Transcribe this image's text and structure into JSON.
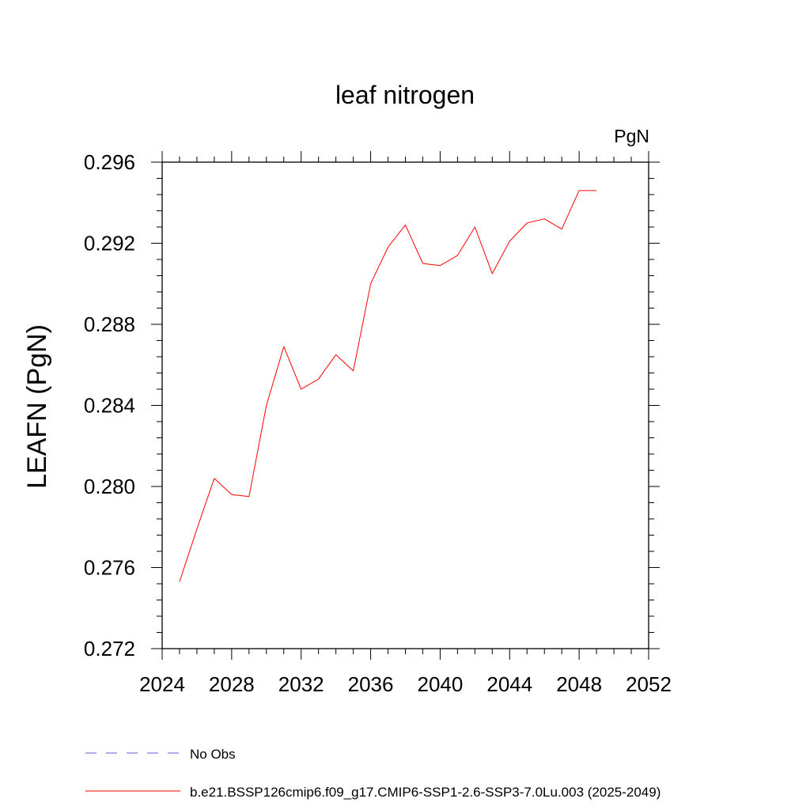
{
  "chart_data": {
    "type": "line",
    "title": "leaf nitrogen",
    "units_label": "PgN",
    "ylabel": "LEAFN  (PgN)",
    "xlabel": "",
    "xlim": [
      2024,
      2052
    ],
    "ylim": [
      0.272,
      0.296
    ],
    "x_ticks": [
      2024,
      2028,
      2032,
      2036,
      2040,
      2044,
      2048,
      2052
    ],
    "x_tick_labels": [
      "2024",
      "2028",
      "2032",
      "2036",
      "2040",
      "2044",
      "2048",
      "2052"
    ],
    "y_ticks": [
      0.272,
      0.276,
      0.28,
      0.284,
      0.288,
      0.292,
      0.296
    ],
    "y_tick_labels": [
      "0.272",
      "0.276",
      "0.280",
      "0.284",
      "0.288",
      "0.292",
      "0.296"
    ],
    "grid": false,
    "legend_placement": "bottom",
    "series": [
      {
        "name": "b.e21.BSSP126cmip6.f09_g17.CMIP6-SSP1-2.6-SSP3-7.0Lu.003 (2025-2049)",
        "color": "#ff0000",
        "style": "solid",
        "x": [
          2025,
          2026,
          2027,
          2028,
          2029,
          2030,
          2031,
          2032,
          2033,
          2034,
          2035,
          2036,
          2037,
          2038,
          2039,
          2040,
          2041,
          2042,
          2043,
          2044,
          2045,
          2046,
          2047,
          2048,
          2049
        ],
        "values": [
          0.2753,
          0.2779,
          0.2804,
          0.2796,
          0.2795,
          0.284,
          0.2869,
          0.2848,
          0.2853,
          0.2865,
          0.2857,
          0.29,
          0.2918,
          0.2929,
          0.291,
          0.2909,
          0.2914,
          0.2928,
          0.2905,
          0.2921,
          0.293,
          0.2932,
          0.2927,
          0.2946,
          0.2946
        ]
      }
    ],
    "legend": [
      {
        "label": "No Obs",
        "color": "#6a5acd",
        "style": "dashed"
      },
      {
        "label": "b.e21.BSSP126cmip6.f09_g17.CMIP6-SSP1-2.6-SSP3-7.0Lu.003 (2025-2049)",
        "color": "#ff0000",
        "style": "solid"
      }
    ]
  }
}
